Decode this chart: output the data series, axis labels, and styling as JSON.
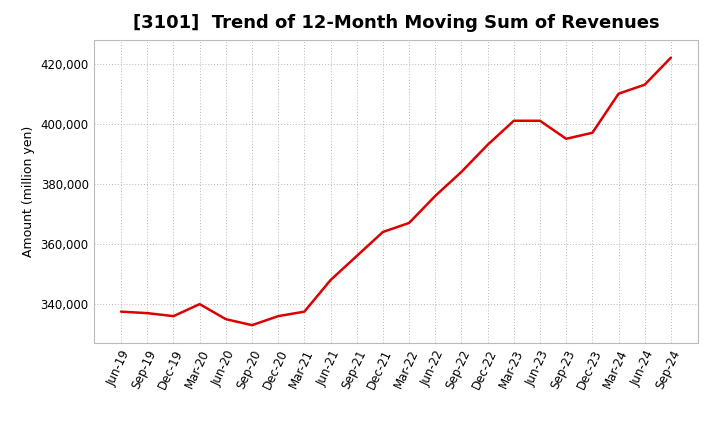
{
  "title": "[3101]  Trend of 12-Month Moving Sum of Revenues",
  "ylabel": "Amount (million yen)",
  "line_color": "#dd0000",
  "background_color": "#ffffff",
  "plot_bg_color": "#ffffff",
  "grid_color": "#999999",
  "x_labels": [
    "Jun-19",
    "Sep-19",
    "Dec-19",
    "Mar-20",
    "Jun-20",
    "Sep-20",
    "Dec-20",
    "Mar-21",
    "Jun-21",
    "Sep-21",
    "Dec-21",
    "Mar-22",
    "Jun-22",
    "Sep-22",
    "Dec-22",
    "Mar-23",
    "Jun-23",
    "Sep-23",
    "Dec-23",
    "Mar-24",
    "Jun-24",
    "Sep-24"
  ],
  "values": [
    337500,
    337000,
    336000,
    340000,
    335000,
    333000,
    336000,
    337500,
    348000,
    356000,
    364000,
    367000,
    376000,
    384000,
    393000,
    401000,
    401000,
    395000,
    397000,
    410000,
    413000,
    422000
  ],
  "ylim": [
    327000,
    428000
  ],
  "yticks": [
    340000,
    360000,
    380000,
    400000,
    420000
  ],
  "title_fontsize": 13,
  "label_fontsize": 9,
  "tick_fontsize": 8.5
}
